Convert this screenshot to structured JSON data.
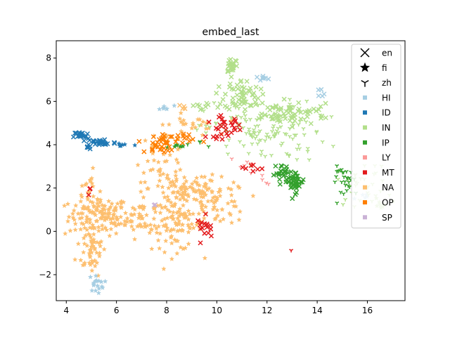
{
  "chart_data": {
    "type": "scatter",
    "title": "embed_last",
    "xlabel": "",
    "ylabel": "",
    "xlim": [
      3.6,
      17.5
    ],
    "ylim": [
      -3.2,
      8.8
    ],
    "xticks": [
      4,
      6,
      8,
      10,
      12,
      14,
      16
    ],
    "yticks": [
      -2,
      0,
      2,
      4,
      6,
      8
    ],
    "grid": false,
    "legend_position": "top-right",
    "legend": {
      "markers": [
        {
          "label": "en",
          "marker": "x"
        },
        {
          "label": "fi",
          "marker": "star"
        },
        {
          "label": "zh",
          "marker": "tri_down"
        }
      ],
      "categories": [
        {
          "label": "HI",
          "color": "#a6cee3"
        },
        {
          "label": "ID",
          "color": "#1f78b4"
        },
        {
          "label": "IN",
          "color": "#b2df8a"
        },
        {
          "label": "IP",
          "color": "#33a02c"
        },
        {
          "label": "LY",
          "color": "#fb9a99"
        },
        {
          "label": "MT",
          "color": "#e31a1c"
        },
        {
          "label": "NA",
          "color": "#fdbf6f"
        },
        {
          "label": "OP",
          "color": "#ff7f00"
        },
        {
          "label": "SP",
          "color": "#cab2d6"
        }
      ]
    },
    "clusters": [
      {
        "category": "NA",
        "marker": "star",
        "cx": 5.3,
        "cy": 0.7,
        "sx": 0.6,
        "sy": 0.45,
        "n": 130
      },
      {
        "category": "NA",
        "marker": "star",
        "cx": 5.0,
        "cy": -0.8,
        "sx": 0.3,
        "sy": 0.6,
        "n": 50
      },
      {
        "category": "NA",
        "marker": "star",
        "cx": 4.9,
        "cy": 2.0,
        "sx": 0.2,
        "sy": 0.4,
        "n": 18
      },
      {
        "category": "NA",
        "marker": "star",
        "cx": 7.0,
        "cy": 0.7,
        "sx": 0.45,
        "sy": 0.5,
        "n": 55
      },
      {
        "category": "NA",
        "marker": "star",
        "cx": 8.4,
        "cy": 0.3,
        "sx": 0.5,
        "sy": 0.6,
        "n": 90
      },
      {
        "category": "NA",
        "marker": "star",
        "cx": 8.7,
        "cy": 2.0,
        "sx": 0.7,
        "sy": 0.4,
        "n": 70
      },
      {
        "category": "NA",
        "marker": "star",
        "cx": 10.0,
        "cy": 1.3,
        "sx": 0.6,
        "sy": 0.5,
        "n": 70
      },
      {
        "category": "NA",
        "marker": "star",
        "cx": 7.8,
        "cy": 3.5,
        "sx": 0.5,
        "sy": 0.6,
        "n": 40
      },
      {
        "category": "NA",
        "marker": "star",
        "cx": 9.0,
        "cy": 4.9,
        "sx": 0.5,
        "sy": 0.25,
        "n": 25
      },
      {
        "category": "NA",
        "marker": "x",
        "cx": 8.6,
        "cy": 5.7,
        "sx": 0.15,
        "sy": 0.08,
        "n": 4
      },
      {
        "category": "HI",
        "marker": "star",
        "cx": 5.2,
        "cy": -2.4,
        "sx": 0.15,
        "sy": 0.2,
        "n": 18
      },
      {
        "category": "HI",
        "marker": "star",
        "cx": 7.9,
        "cy": 5.7,
        "sx": 0.2,
        "sy": 0.05,
        "n": 7
      },
      {
        "category": "HI",
        "marker": "x",
        "cx": 11.8,
        "cy": 7.05,
        "sx": 0.2,
        "sy": 0.07,
        "n": 7
      },
      {
        "category": "HI",
        "marker": "x",
        "cx": 14.1,
        "cy": 6.3,
        "sx": 0.12,
        "sy": 0.15,
        "n": 5
      },
      {
        "category": "HI",
        "marker": "star",
        "cx": 15.9,
        "cy": 1.5,
        "sx": 0.2,
        "sy": 0.2,
        "n": 5
      },
      {
        "category": "ID",
        "marker": "x",
        "cx": 4.6,
        "cy": 4.4,
        "sx": 0.15,
        "sy": 0.12,
        "n": 18
      },
      {
        "category": "ID",
        "marker": "x",
        "cx": 5.4,
        "cy": 4.1,
        "sx": 0.3,
        "sy": 0.1,
        "n": 25
      },
      {
        "category": "ID",
        "marker": "star",
        "cx": 6.2,
        "cy": 4.0,
        "sx": 0.25,
        "sy": 0.04,
        "n": 6
      },
      {
        "category": "ID",
        "marker": "x",
        "cx": 4.9,
        "cy": 3.85,
        "sx": 0.1,
        "sy": 0.08,
        "n": 5
      },
      {
        "category": "IN",
        "marker": "x",
        "cx": 10.6,
        "cy": 7.7,
        "sx": 0.12,
        "sy": 0.2,
        "n": 25
      },
      {
        "category": "IN",
        "marker": "x",
        "cx": 11.0,
        "cy": 6.3,
        "sx": 0.35,
        "sy": 0.35,
        "n": 60
      },
      {
        "category": "IN",
        "marker": "x",
        "cx": 12.3,
        "cy": 5.4,
        "sx": 0.6,
        "sy": 0.3,
        "n": 45
      },
      {
        "category": "IN",
        "marker": "tri_down",
        "cx": 11.9,
        "cy": 4.6,
        "sx": 1.2,
        "sy": 0.7,
        "n": 130
      },
      {
        "category": "IN",
        "marker": "x",
        "cx": 13.5,
        "cy": 5.5,
        "sx": 0.5,
        "sy": 0.2,
        "n": 20
      },
      {
        "category": "IN",
        "marker": "x",
        "cx": 9.5,
        "cy": 5.8,
        "sx": 0.25,
        "sy": 0.08,
        "n": 8
      },
      {
        "category": "IN",
        "marker": "tri_down",
        "cx": 15.8,
        "cy": 2.2,
        "sx": 0.5,
        "sy": 0.5,
        "n": 35
      },
      {
        "category": "IN",
        "marker": "star",
        "cx": 16.5,
        "cy": 1.2,
        "sx": 0.2,
        "sy": 0.15,
        "n": 10
      },
      {
        "category": "IP",
        "marker": "x",
        "cx": 13.1,
        "cy": 2.3,
        "sx": 0.2,
        "sy": 0.25,
        "n": 40
      },
      {
        "category": "IP",
        "marker": "x",
        "cx": 12.6,
        "cy": 2.7,
        "sx": 0.15,
        "sy": 0.2,
        "n": 20
      },
      {
        "category": "IP",
        "marker": "tri_down",
        "cx": 15.2,
        "cy": 2.3,
        "sx": 0.3,
        "sy": 0.35,
        "n": 28
      },
      {
        "category": "IP",
        "marker": "star",
        "cx": 8.6,
        "cy": 3.95,
        "sx": 0.2,
        "sy": 0.05,
        "n": 7
      },
      {
        "category": "IP",
        "marker": "tri_down",
        "cx": 9.4,
        "cy": 4.0,
        "sx": 0.15,
        "sy": 0.1,
        "n": 4
      },
      {
        "category": "LY",
        "marker": "tri_down",
        "cx": 11.2,
        "cy": 3.1,
        "sx": 0.3,
        "sy": 0.2,
        "n": 6
      },
      {
        "category": "LY",
        "marker": "tri_down",
        "cx": 11.8,
        "cy": 2.4,
        "sx": 0.1,
        "sy": 0.2,
        "n": 4
      },
      {
        "category": "MT",
        "marker": "x",
        "cx": 10.3,
        "cy": 4.8,
        "sx": 0.35,
        "sy": 0.25,
        "n": 30
      },
      {
        "category": "MT",
        "marker": "x",
        "cx": 9.6,
        "cy": 0.2,
        "sx": 0.2,
        "sy": 0.25,
        "n": 16
      },
      {
        "category": "MT",
        "marker": "x",
        "cx": 11.3,
        "cy": 2.9,
        "sx": 0.25,
        "sy": 0.15,
        "n": 7
      },
      {
        "category": "MT",
        "marker": "x",
        "cx": 4.95,
        "cy": 1.9,
        "sx": 0.05,
        "sy": 0.1,
        "n": 3
      },
      {
        "category": "MT",
        "marker": "tri_down",
        "cx": 12.95,
        "cy": -0.85,
        "sx": 0.02,
        "sy": 0.02,
        "n": 1
      },
      {
        "category": "OP",
        "marker": "x",
        "cx": 8.1,
        "cy": 4.2,
        "sx": 0.5,
        "sy": 0.2,
        "n": 35
      },
      {
        "category": "OP",
        "marker": "x",
        "cx": 7.5,
        "cy": 3.8,
        "sx": 0.2,
        "sy": 0.1,
        "n": 10
      },
      {
        "category": "SP",
        "marker": "x",
        "cx": 7.55,
        "cy": 1.2,
        "sx": 0.05,
        "sy": 0.05,
        "n": 2
      }
    ]
  }
}
